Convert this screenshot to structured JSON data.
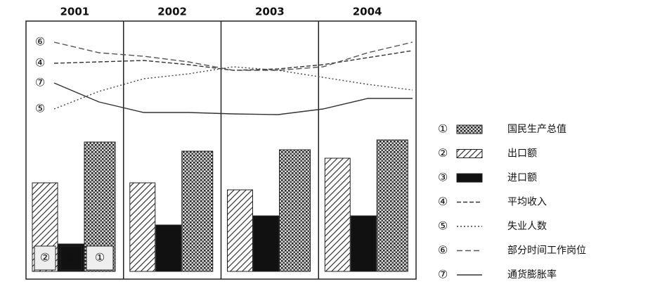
{
  "chart_data": {
    "type": "bar-line",
    "categories": [
      "2001",
      "2002",
      "2003",
      "2004"
    ],
    "ylim": [
      0,
      360
    ],
    "bar_series": [
      {
        "marker": "①",
        "name": "国民生产总值",
        "pattern": "crosshatch",
        "color": "#222222",
        "values": [
          184,
          171,
          173,
          187
        ]
      },
      {
        "marker": "②",
        "name": "出口额",
        "pattern": "hatch",
        "color": "#222222",
        "values": [
          126,
          126,
          116,
          161
        ]
      },
      {
        "marker": "③",
        "name": "进口额",
        "pattern": "solid",
        "color": "#111111",
        "values": [
          39,
          66,
          79,
          79
        ]
      }
    ],
    "line_series": [
      {
        "marker": "④",
        "name": "平均收入",
        "style": "dash-x",
        "color": "#333333",
        "values": [
          296,
          298,
          300,
          294,
          286,
          288,
          294,
          304,
          314
        ]
      },
      {
        "marker": "⑤",
        "name": "失业人数",
        "style": "dot-plus",
        "color": "#444444",
        "values": [
          231,
          256,
          274,
          281,
          291,
          286,
          276,
          266,
          258
        ]
      },
      {
        "marker": "⑥",
        "name": "部分时间工作岗位",
        "style": "dash",
        "color": "#555555",
        "values": [
          326,
          311,
          306,
          298,
          286,
          286,
          291,
          311,
          326
        ]
      },
      {
        "marker": "⑦",
        "name": "通货膨胀率",
        "style": "solid",
        "color": "#333333",
        "values": [
          268,
          241,
          226,
          226,
          224,
          223,
          231,
          246,
          246
        ]
      }
    ]
  }
}
